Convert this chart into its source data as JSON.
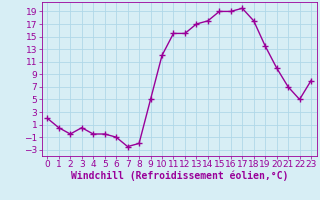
{
  "x": [
    0,
    1,
    2,
    3,
    4,
    5,
    6,
    7,
    8,
    9,
    10,
    11,
    12,
    13,
    14,
    15,
    16,
    17,
    18,
    19,
    20,
    21,
    22,
    23
  ],
  "y": [
    2,
    0.5,
    -0.5,
    0.5,
    -0.5,
    -0.5,
    -1,
    -2.5,
    -2,
    5,
    12,
    15.5,
    15.5,
    17,
    17.5,
    19,
    19,
    19.5,
    17.5,
    13.5,
    10,
    7,
    5,
    8
  ],
  "line_color": "#990099",
  "marker": "+",
  "bg_color": "#d7eef5",
  "grid_color": "#b0d8e8",
  "xlabel": "Windchill (Refroidissement éolien,°C)",
  "yticks": [
    -3,
    -1,
    1,
    3,
    5,
    7,
    9,
    11,
    13,
    15,
    17,
    19
  ],
  "xticks": [
    0,
    1,
    2,
    3,
    4,
    5,
    6,
    7,
    8,
    9,
    10,
    11,
    12,
    13,
    14,
    15,
    16,
    17,
    18,
    19,
    20,
    21,
    22,
    23
  ],
  "xlim": [
    -0.5,
    23.5
  ],
  "ylim": [
    -4,
    20.5
  ],
  "xlabel_fontsize": 7.0,
  "tick_fontsize": 6.5,
  "line_width": 1.0,
  "marker_size": 4
}
